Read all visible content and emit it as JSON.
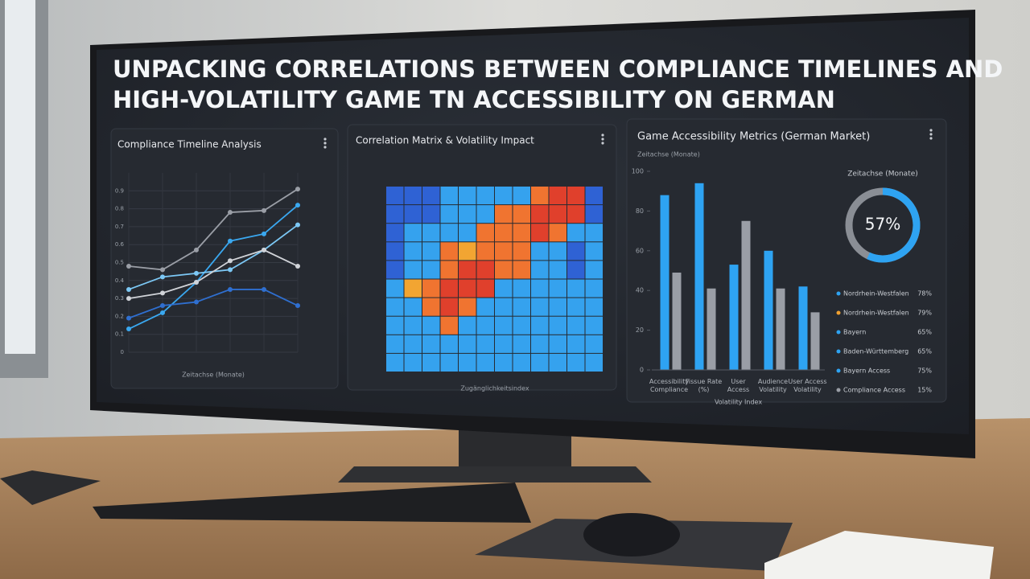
{
  "header": {
    "title_lines": [
      "UNPACKING CORRELATIONS BETWEEN COMPLIANCE TIMELINES AND",
      "HIGH-VOLATILITY GAME TN ACCESSIBILITY ON GERMAN"
    ]
  },
  "chart_data": [
    {
      "type": "line",
      "title": "Compliance Timeline Analysis",
      "x_label": "Zeitachse (Monate)",
      "categories": [
        null,
        null,
        null,
        null,
        null,
        null
      ],
      "ylim": [
        0,
        1
      ],
      "yticks": [
        0,
        0.1,
        0.2,
        0.3,
        0.4,
        0.5,
        0.6,
        0.7,
        0.8,
        0.9
      ],
      "grid": true,
      "series": [
        {
          "color": "#9a9ea6",
          "values": [
            0.48,
            0.46,
            0.57,
            0.78,
            0.79,
            0.91
          ]
        },
        {
          "color": "#3aa8f0",
          "values": [
            0.13,
            0.22,
            0.39,
            0.62,
            0.66,
            0.82
          ]
        },
        {
          "color": "#7cc8f5",
          "values": [
            0.35,
            0.42,
            0.44,
            0.46,
            0.57,
            0.71
          ]
        },
        {
          "color": "#d0d3d8",
          "values": [
            0.3,
            0.33,
            0.39,
            0.51,
            0.57,
            0.48
          ]
        },
        {
          "color": "#2f6fd0",
          "values": [
            0.19,
            0.26,
            0.28,
            0.35,
            0.35,
            0.26
          ]
        }
      ]
    },
    {
      "type": "heatmap",
      "title": "Correlation Matrix & Volatility Impact",
      "x_label": "Zugänglichkeitsindex",
      "z": [
        [
          0.1,
          0.15,
          0.2,
          0.3,
          0.3,
          0.25,
          0.3,
          0.35,
          0.75,
          0.9,
          0.9,
          0.15
        ],
        [
          0.15,
          0.2,
          0.2,
          0.3,
          0.35,
          0.3,
          0.7,
          0.8,
          0.9,
          0.85,
          0.9,
          0.2
        ],
        [
          0.2,
          0.25,
          0.3,
          0.35,
          0.3,
          0.7,
          0.75,
          0.8,
          0.85,
          0.8,
          0.3,
          0.25
        ],
        [
          0.1,
          0.3,
          0.35,
          0.7,
          0.65,
          0.75,
          0.8,
          0.8,
          0.35,
          0.3,
          0.15,
          0.3
        ],
        [
          0.15,
          0.3,
          0.35,
          0.7,
          0.85,
          0.9,
          0.8,
          0.75,
          0.35,
          0.3,
          0.2,
          0.3
        ],
        [
          0.3,
          0.65,
          0.8,
          0.85,
          0.9,
          0.85,
          0.4,
          0.35,
          0.3,
          0.3,
          0.3,
          0.35
        ],
        [
          0.3,
          0.35,
          0.75,
          0.9,
          0.7,
          0.4,
          0.35,
          0.35,
          0.3,
          0.3,
          0.3,
          0.3
        ],
        [
          0.35,
          0.3,
          0.35,
          0.7,
          0.4,
          0.35,
          0.35,
          0.3,
          0.3,
          0.3,
          0.35,
          0.3
        ],
        [
          0.35,
          0.35,
          0.35,
          0.35,
          0.35,
          0.35,
          0.35,
          0.35,
          0.35,
          0.35,
          0.35,
          0.35
        ],
        [
          0.35,
          0.35,
          0.35,
          0.35,
          0.35,
          0.35,
          0.35,
          0.35,
          0.35,
          0.35,
          0.35,
          0.35
        ]
      ]
    },
    {
      "type": "bar",
      "title": "Game Accessibility Metrics (German Market)",
      "subtitle": "Zeitachse (Monate)",
      "x_label": "Volatility Index",
      "categories": [
        "Accessibility Compliance",
        "Fissue Rate (%)",
        "User Access",
        "Audience Volatility",
        "User Access Volatility"
      ],
      "ylim": [
        0,
        100
      ],
      "yticks": [
        0,
        20,
        40,
        60,
        80,
        100
      ],
      "series": [
        {
          "color": "#2ea3f2",
          "values": [
            88,
            94,
            53,
            60,
            42
          ]
        },
        {
          "color": "#9a9ea6",
          "values": [
            49,
            41,
            75,
            41,
            29
          ]
        }
      ]
    },
    {
      "type": "donut",
      "title": "Zeitachse (Monate)",
      "value": 57,
      "value_label": "57%",
      "color": "#2ea3f2",
      "items": [
        {
          "name": "Nordrhein-Westfalen",
          "color": "#2ea3f2",
          "value": 78,
          "value_label": "78%"
        },
        {
          "name": "Nordrhein-Westfalen",
          "color": "#f0a030",
          "value": 79,
          "value_label": "79%"
        },
        {
          "name": "Bayern",
          "color": "#2ea3f2",
          "value": 65,
          "value_label": "65%"
        },
        {
          "name": "Baden-Württemberg",
          "color": "#2ea3f2",
          "value": 65,
          "value_label": "65%"
        },
        {
          "name": "Bayern Access",
          "color": "#2ea3f2",
          "value": 75,
          "value_label": "75%"
        },
        {
          "name": "Compliance Access",
          "color": "#9a9ea6",
          "value": 15,
          "value_label": "15%"
        }
      ]
    }
  ]
}
